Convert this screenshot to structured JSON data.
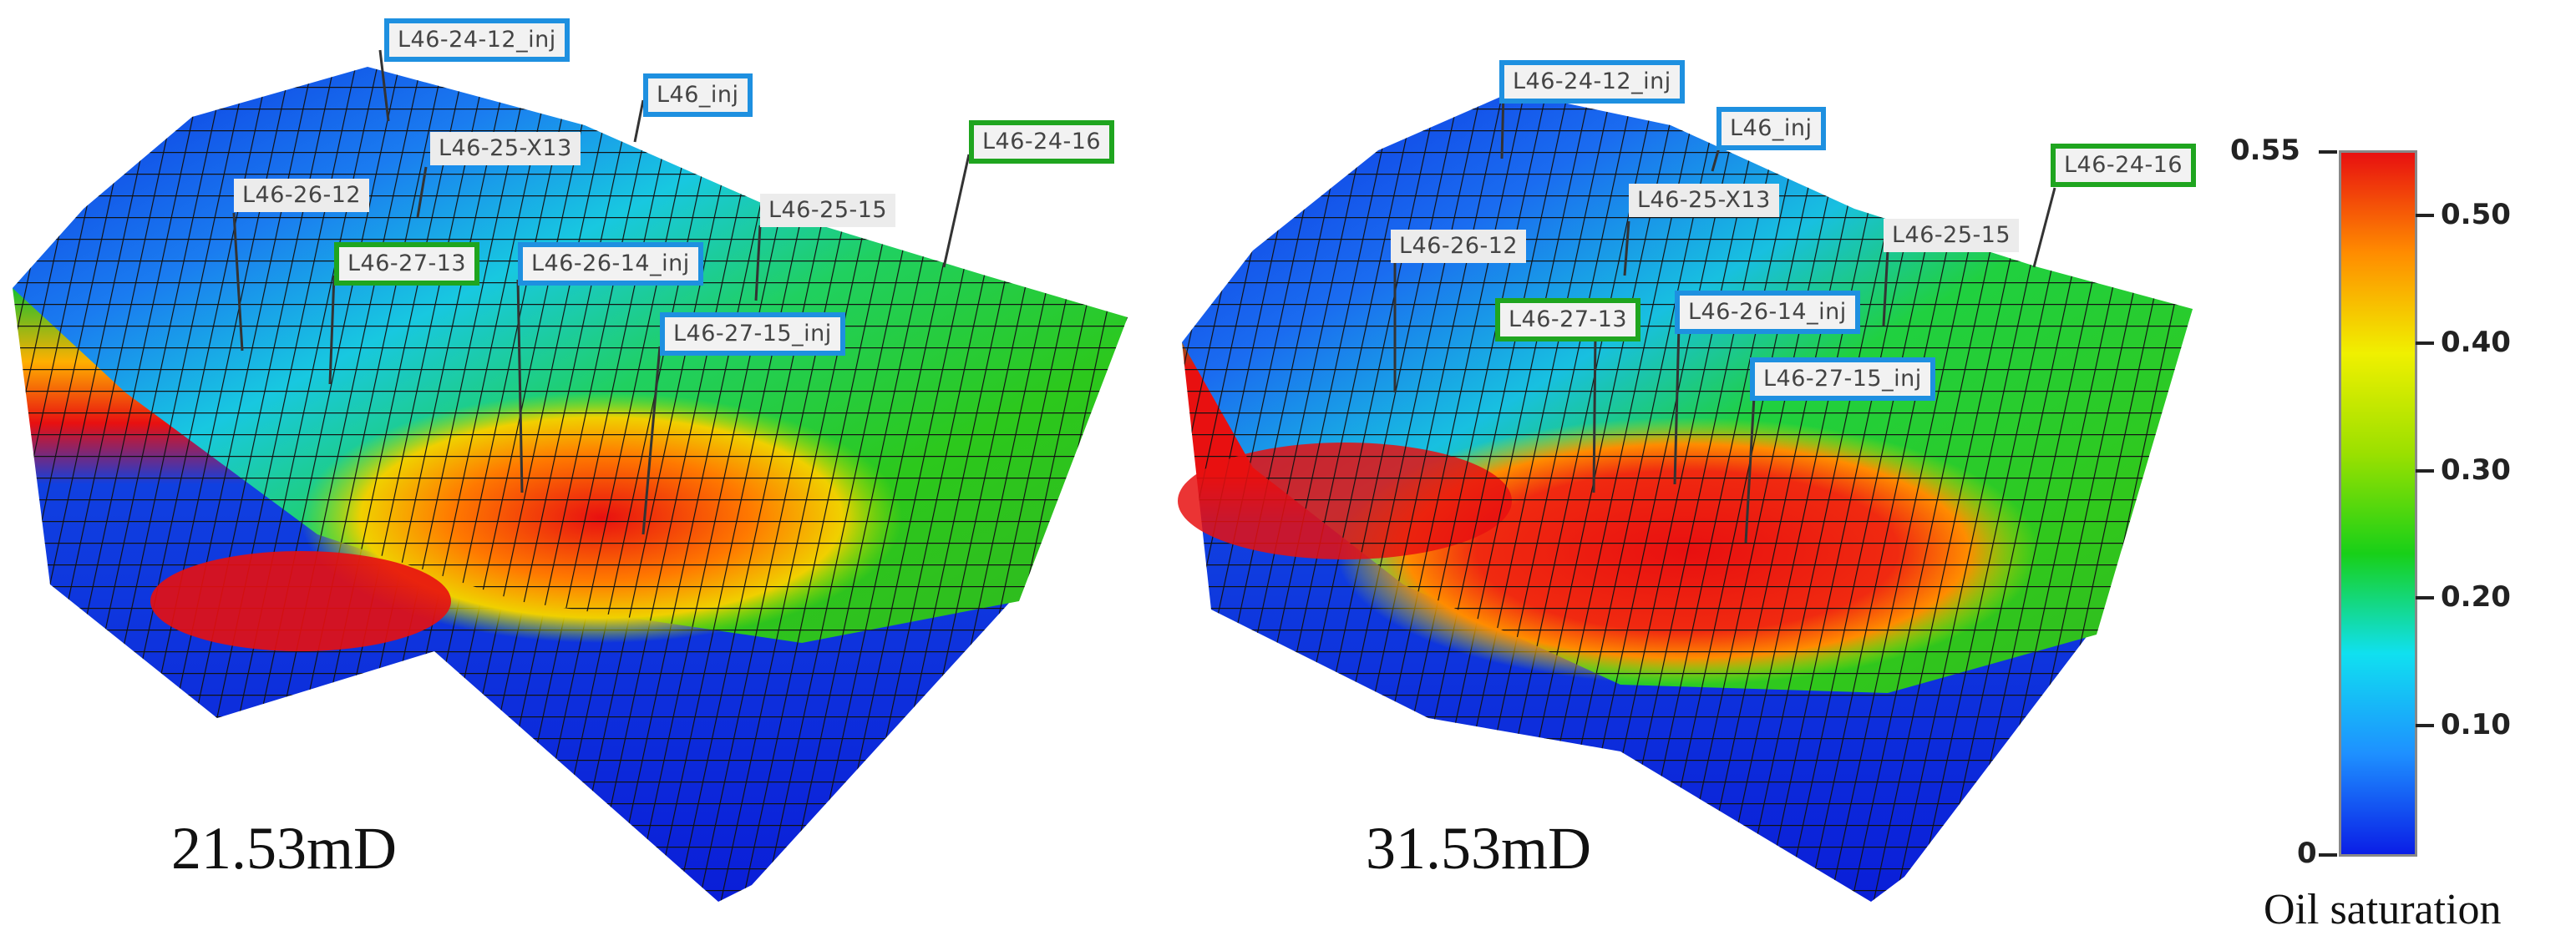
{
  "panels": [
    {
      "permeability_label": "21.53mD",
      "wells": [
        {
          "name": "L46-24-12_inj",
          "type": "injector"
        },
        {
          "name": "L46_inj",
          "type": "injector"
        },
        {
          "name": "L46-24-16",
          "type": "producer"
        },
        {
          "name": "L46-25-X13",
          "type": "other"
        },
        {
          "name": "L46-26-12",
          "type": "other"
        },
        {
          "name": "L46-25-15",
          "type": "other"
        },
        {
          "name": "L46-27-13",
          "type": "producer"
        },
        {
          "name": "L46-26-14_inj",
          "type": "injector"
        },
        {
          "name": "L46-27-15_inj",
          "type": "injector"
        }
      ]
    },
    {
      "permeability_label": "31.53mD",
      "wells": [
        {
          "name": "L46-24-12_inj",
          "type": "injector"
        },
        {
          "name": "L46_inj",
          "type": "injector"
        },
        {
          "name": "L46-24-16",
          "type": "producer"
        },
        {
          "name": "L46-25-X13",
          "type": "other"
        },
        {
          "name": "L46-26-12",
          "type": "other"
        },
        {
          "name": "L46-25-15",
          "type": "other"
        },
        {
          "name": "L46-27-13",
          "type": "producer"
        },
        {
          "name": "L46-26-14_inj",
          "type": "injector"
        },
        {
          "name": "L46-27-15_inj",
          "type": "injector"
        }
      ]
    }
  ],
  "colorbar": {
    "title": "Oil saturation",
    "min_label": "0",
    "max_label": "0.55",
    "ticks": [
      "0.10",
      "0.20",
      "0.30",
      "0.40",
      "0.50"
    ],
    "colors": [
      "#0a1ee6",
      "#1e90ff",
      "#10e0f0",
      "#18d018",
      "#9be000",
      "#f0f000",
      "#ff8c00",
      "#e81010"
    ]
  },
  "colors": {
    "injector_border": "#1e90e0",
    "producer_border": "#1fa51f"
  }
}
